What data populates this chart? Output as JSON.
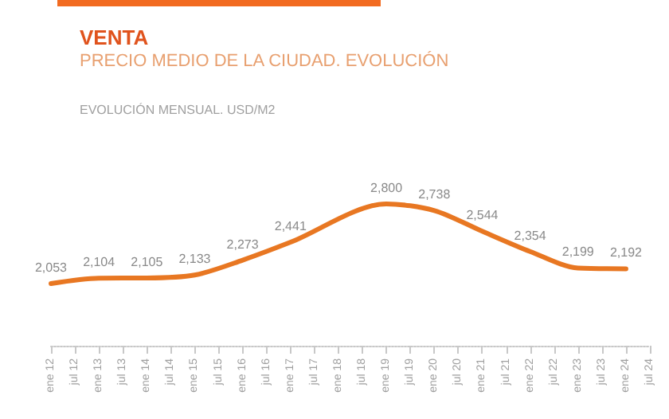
{
  "chart_data": {
    "type": "line",
    "title": "VENTA",
    "subtitle": "PRECIO MEDIO DE LA CIUDAD. EVOLUCIÓN",
    "annotations": [
      "EVOLUCIÓN MENSUAL. USD/M2"
    ],
    "categories": [
      "ene 12",
      "jul 12",
      "ene 13",
      "jul 13",
      "ene 14",
      "jul 14",
      "ene 15",
      "jul 15",
      "ene 16",
      "jul 16",
      "ene 17",
      "jul 17",
      "ene 18",
      "jul 18",
      "ene 19",
      "jul 19",
      "ene 20",
      "jul 20",
      "ene 21",
      "jul 21",
      "ene 22",
      "jul 22",
      "ene 23",
      "jul 23",
      "ene 24",
      "jul 24"
    ],
    "series": [
      {
        "color": "#e87722",
        "values": [
          2053,
          null,
          2104,
          null,
          2105,
          null,
          2133,
          null,
          2273,
          null,
          2441,
          null,
          null,
          null,
          2800,
          null,
          2738,
          null,
          2544,
          null,
          2354,
          null,
          2199,
          null,
          2192,
          null
        ],
        "value_labels": [
          "2,053",
          null,
          "2,104",
          null,
          "2,105",
          null,
          "2,133",
          null,
          "2,273",
          null,
          "2,441",
          null,
          null,
          null,
          "2,800",
          null,
          "2,738",
          null,
          "2,544",
          null,
          "2,354",
          null,
          "2,199",
          null,
          "2,192",
          null
        ]
      }
    ],
    "grid": false,
    "marker": "none",
    "line_style": "solid"
  }
}
